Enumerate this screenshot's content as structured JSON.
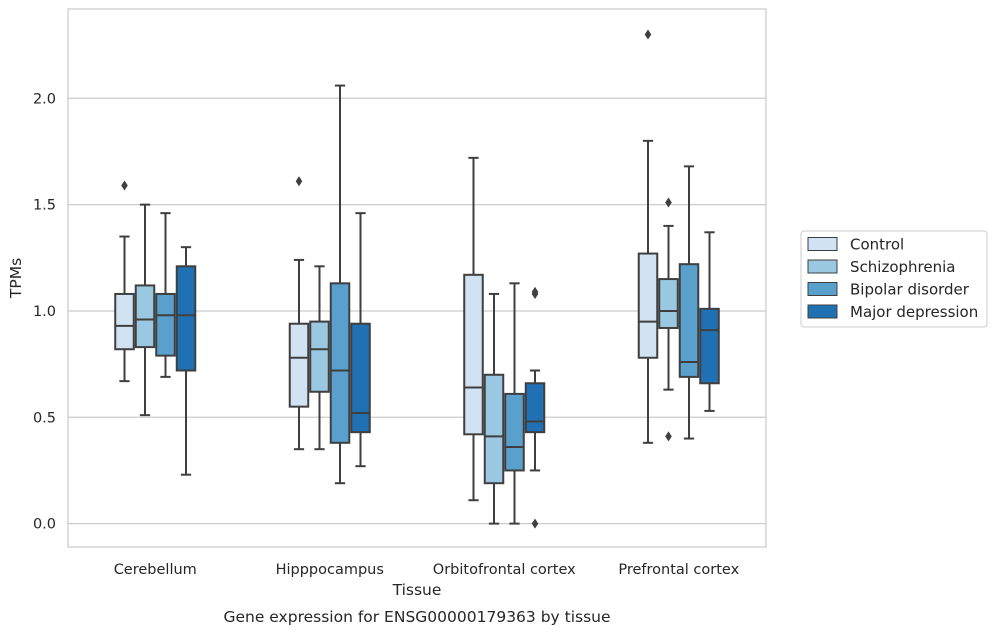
{
  "chart_data": {
    "type": "box",
    "title": "Gene expression for ENSG00000179363 by tissue",
    "xlabel": "Tissue",
    "ylabel": "TPMs",
    "ylim": [
      -0.11,
      2.42
    ],
    "yticks": [
      0.0,
      0.5,
      1.0,
      1.5,
      2.0
    ],
    "ytick_labels": [
      "0.0",
      "0.5",
      "1.0",
      "1.5",
      "2.0"
    ],
    "grid": "horizontal",
    "legend_position": "right",
    "categories": [
      "Cerebellum",
      "Hipppocampus",
      "Orbitofrontal cortex",
      "Prefrontal cortex"
    ],
    "series": [
      {
        "name": "Control",
        "color": "#d1e3f3",
        "boxes": [
          {
            "q1": 0.82,
            "median": 0.93,
            "q3": 1.08,
            "whisker_low": 0.67,
            "whisker_high": 1.35,
            "outliers": [
              1.59
            ]
          },
          {
            "q1": 0.55,
            "median": 0.78,
            "q3": 0.94,
            "whisker_low": 0.35,
            "whisker_high": 1.24,
            "outliers": [
              1.61
            ]
          },
          {
            "q1": 0.42,
            "median": 0.64,
            "q3": 1.17,
            "whisker_low": 0.11,
            "whisker_high": 1.72,
            "outliers": []
          },
          {
            "q1": 0.78,
            "median": 0.95,
            "q3": 1.27,
            "whisker_low": 0.38,
            "whisker_high": 1.8,
            "outliers": [
              2.3
            ]
          }
        ]
      },
      {
        "name": "Schizophrenia",
        "color": "#9ac8e0",
        "boxes": [
          {
            "q1": 0.83,
            "median": 0.96,
            "q3": 1.12,
            "whisker_low": 0.51,
            "whisker_high": 1.5,
            "outliers": []
          },
          {
            "q1": 0.62,
            "median": 0.82,
            "q3": 0.95,
            "whisker_low": 0.35,
            "whisker_high": 1.21,
            "outliers": []
          },
          {
            "q1": 0.19,
            "median": 0.41,
            "q3": 0.7,
            "whisker_low": 0.0,
            "whisker_high": 1.08,
            "outliers": []
          },
          {
            "q1": 0.92,
            "median": 1.0,
            "q3": 1.15,
            "whisker_low": 0.63,
            "whisker_high": 1.4,
            "outliers": [
              1.51,
              0.41
            ]
          }
        ]
      },
      {
        "name": "Bipolar disorder",
        "color": "#5aa0cd",
        "boxes": [
          {
            "q1": 0.79,
            "median": 0.98,
            "q3": 1.08,
            "whisker_low": 0.69,
            "whisker_high": 1.46,
            "outliers": []
          },
          {
            "q1": 0.38,
            "median": 0.72,
            "q3": 1.13,
            "whisker_low": 0.19,
            "whisker_high": 2.06,
            "outliers": []
          },
          {
            "q1": 0.25,
            "median": 0.36,
            "q3": 0.61,
            "whisker_low": 0.0,
            "whisker_high": 1.13,
            "outliers": []
          },
          {
            "q1": 0.69,
            "median": 0.76,
            "q3": 1.22,
            "whisker_low": 0.4,
            "whisker_high": 1.68,
            "outliers": []
          }
        ]
      },
      {
        "name": "Major depression",
        "color": "#2070b4",
        "boxes": [
          {
            "q1": 0.72,
            "median": 0.98,
            "q3": 1.21,
            "whisker_low": 0.23,
            "whisker_high": 1.3,
            "outliers": []
          },
          {
            "q1": 0.43,
            "median": 0.52,
            "q3": 0.94,
            "whisker_low": 0.27,
            "whisker_high": 1.46,
            "outliers": []
          },
          {
            "q1": 0.43,
            "median": 0.48,
            "q3": 0.66,
            "whisker_low": 0.25,
            "whisker_high": 0.72,
            "outliers": [
              1.08,
              1.09,
              0.0
            ]
          },
          {
            "q1": 0.66,
            "median": 0.91,
            "q3": 1.01,
            "whisker_low": 0.53,
            "whisker_high": 1.37,
            "outliers": []
          }
        ]
      }
    ]
  }
}
